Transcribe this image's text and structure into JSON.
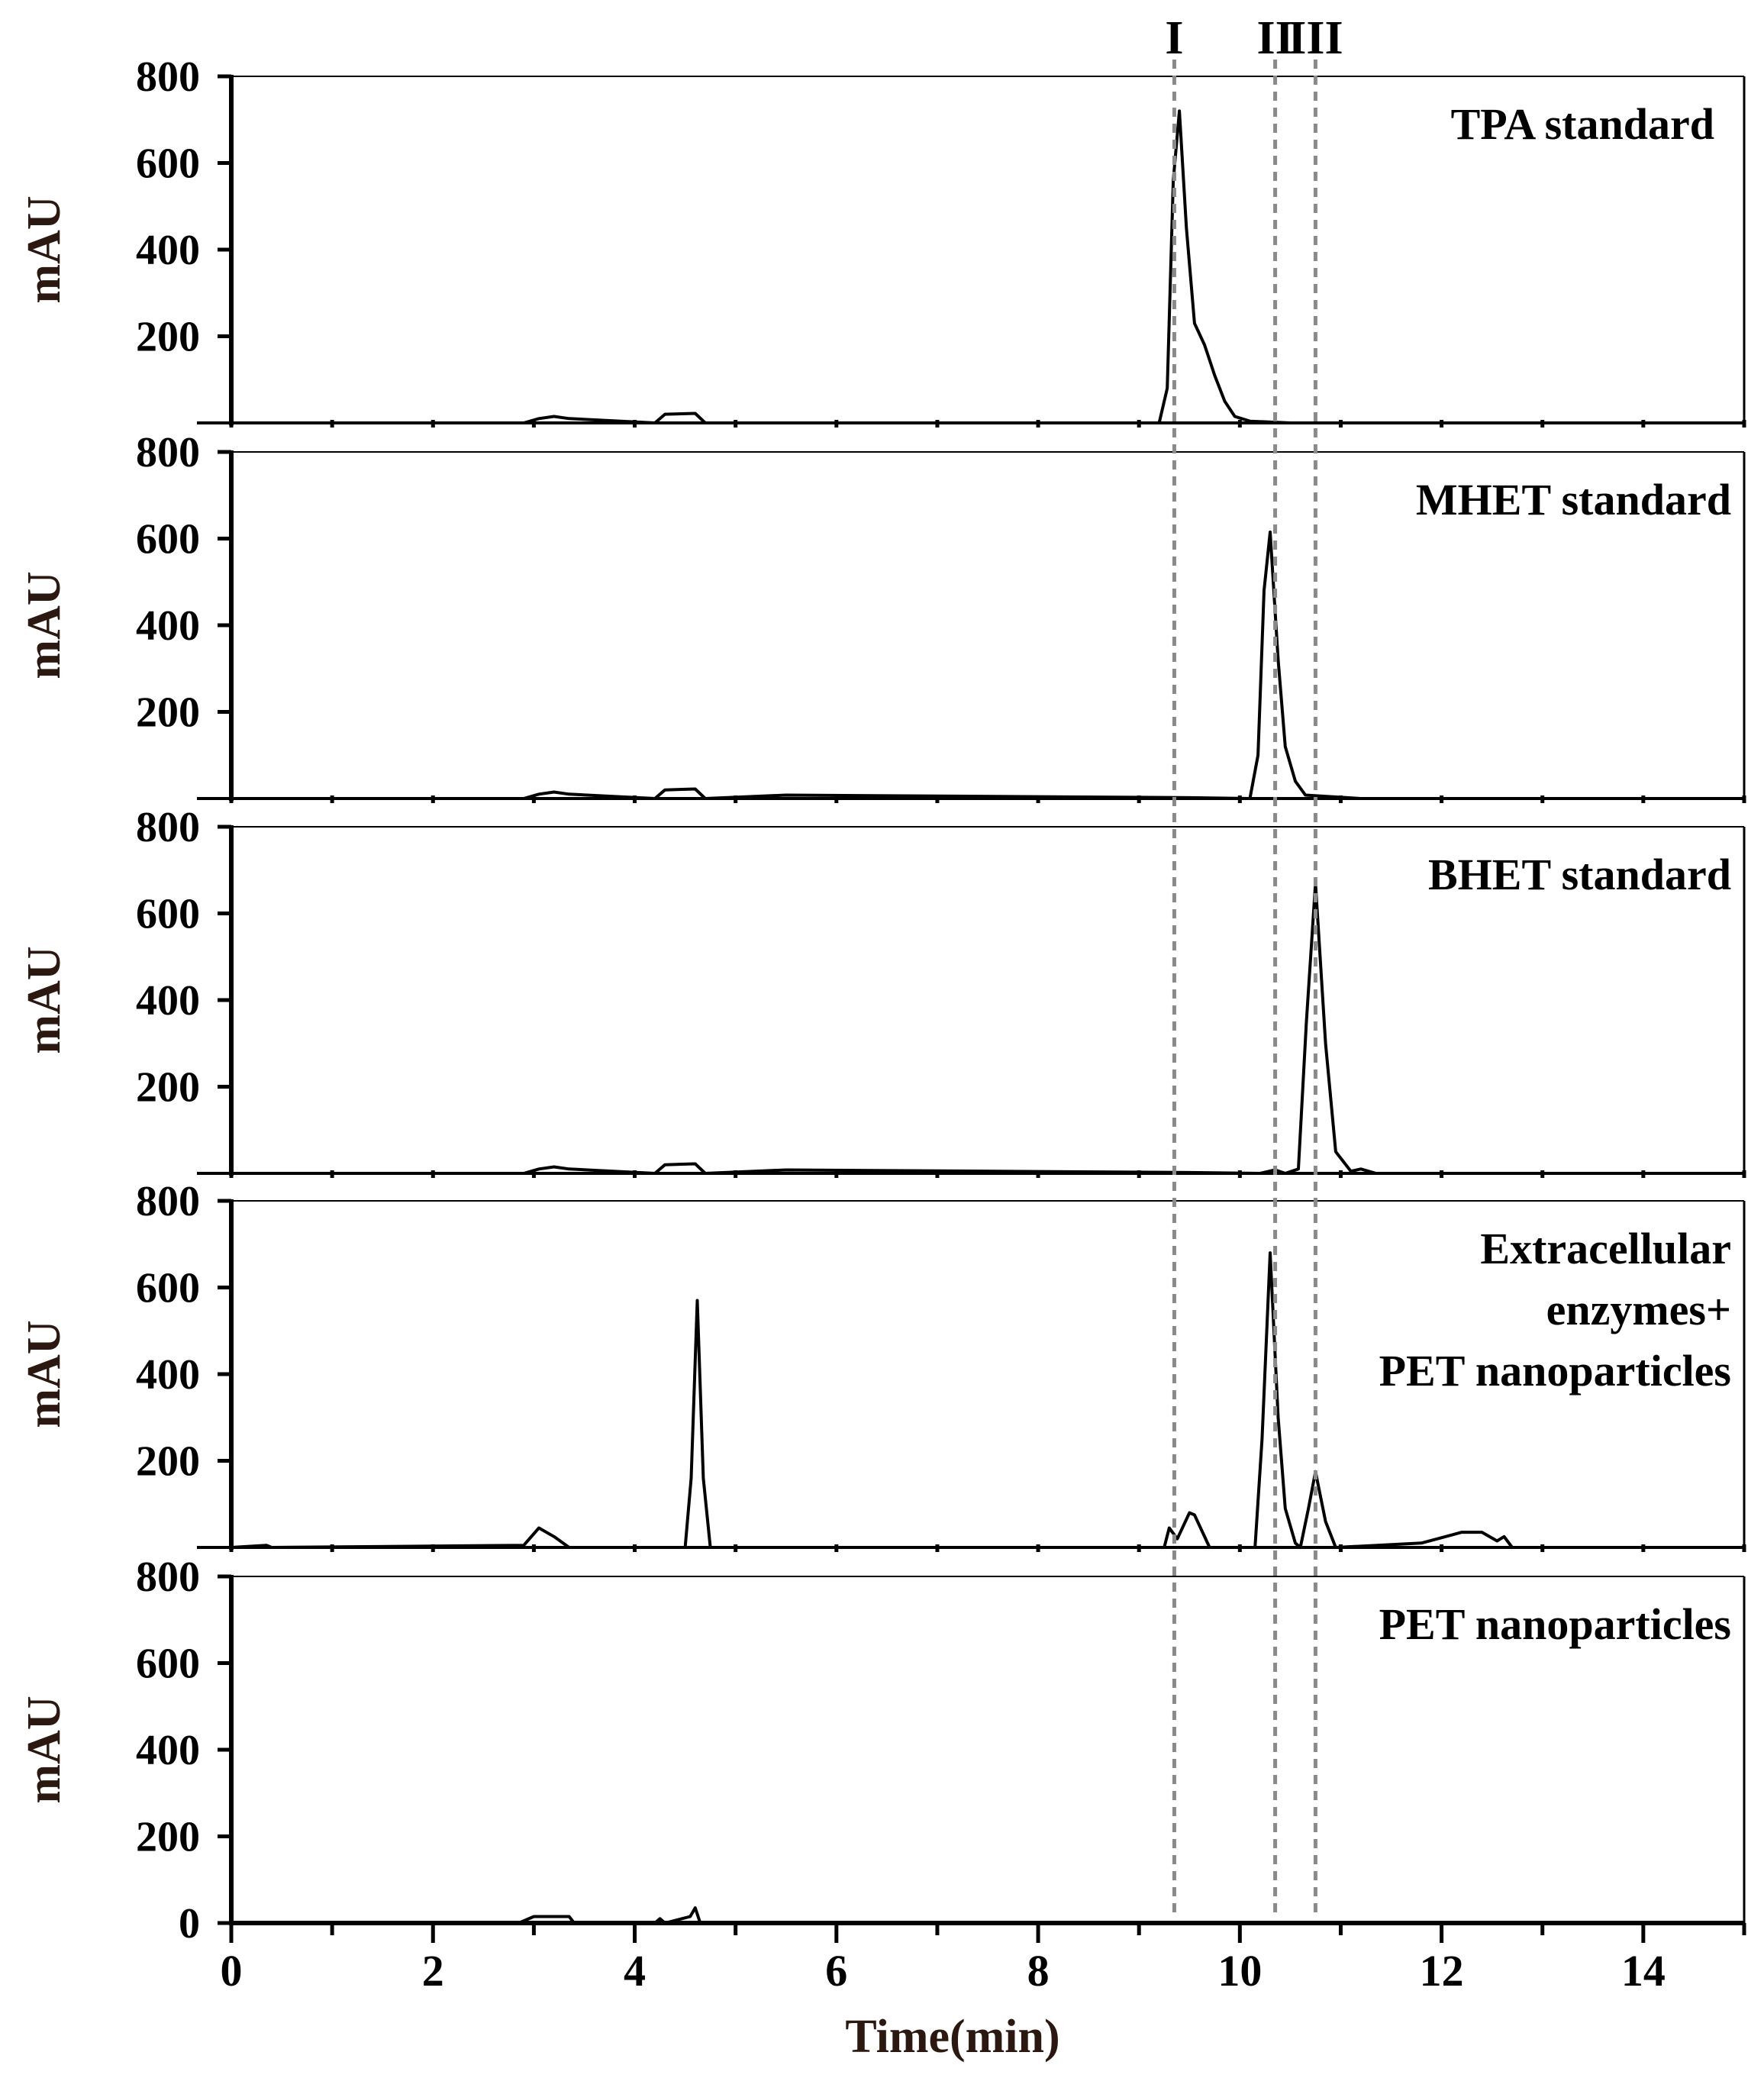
{
  "chart_data": {
    "type": "line",
    "xlabel": "Time(min)",
    "ylabel": "mAU",
    "xlim": [
      0,
      15
    ],
    "ylim": [
      0,
      800
    ],
    "x_ticks": [
      "0",
      "2",
      "4",
      "6",
      "8",
      "10",
      "12",
      "14"
    ],
    "y_ticks": [
      "200",
      "400",
      "600",
      "800"
    ],
    "bottom_y_ticks": [
      "0",
      "200",
      "400",
      "600",
      "800"
    ],
    "markers": [
      {
        "label": "I",
        "x": 9.35
      },
      {
        "label": "II",
        "x": 10.35
      },
      {
        "label": "III",
        "x": 10.75
      }
    ],
    "panels": [
      {
        "label": [
          "TPA standard"
        ],
        "x": [
          0,
          2.9,
          3.05,
          3.2,
          3.35,
          4.2,
          4.3,
          4.6,
          4.7,
          9.2,
          9.28,
          9.34,
          9.4,
          9.47,
          9.55,
          9.65,
          9.75,
          9.85,
          9.95,
          10.1,
          10.5,
          15
        ],
        "y": [
          0,
          0,
          10,
          15,
          10,
          0,
          20,
          22,
          0,
          0,
          80,
          560,
          720,
          450,
          230,
          180,
          110,
          50,
          15,
          4,
          0,
          0
        ]
      },
      {
        "label": [
          "MHET standard"
        ],
        "x": [
          0,
          2.9,
          3.05,
          3.2,
          3.35,
          4.2,
          4.3,
          4.6,
          4.7,
          5.5,
          9.5,
          10.1,
          10.18,
          10.24,
          10.3,
          10.38,
          10.45,
          10.55,
          10.65,
          11.2,
          15
        ],
        "y": [
          0,
          0,
          10,
          15,
          10,
          0,
          20,
          22,
          0,
          8,
          2,
          0,
          100,
          480,
          615,
          320,
          120,
          40,
          8,
          0,
          0
        ]
      },
      {
        "label": [
          "BHET standard"
        ],
        "x": [
          0,
          2.9,
          3.05,
          3.2,
          3.35,
          4.2,
          4.3,
          4.6,
          4.7,
          5.5,
          9.5,
          10.2,
          10.35,
          10.45,
          10.58,
          10.66,
          10.75,
          10.85,
          10.95,
          11.1,
          11.2,
          11.35,
          15
        ],
        "y": [
          0,
          0,
          10,
          15,
          10,
          0,
          20,
          22,
          0,
          8,
          2,
          0,
          8,
          0,
          10,
          350,
          670,
          300,
          50,
          5,
          10,
          0,
          0
        ]
      },
      {
        "label": [
          "Extracellular",
          "enzymes+",
          "PET nanoparticles"
        ],
        "x": [
          0,
          0.35,
          0.4,
          2.9,
          3.05,
          3.2,
          3.35,
          4.5,
          4.56,
          4.62,
          4.68,
          4.75,
          9.25,
          9.3,
          9.38,
          9.5,
          9.55,
          9.7,
          10.15,
          10.22,
          10.3,
          10.38,
          10.45,
          10.55,
          10.6,
          10.68,
          10.75,
          10.85,
          10.95,
          11.8,
          12.2,
          12.4,
          12.55,
          12.62,
          12.7,
          15
        ],
        "y": [
          0,
          5,
          0,
          5,
          45,
          25,
          0,
          0,
          160,
          570,
          160,
          0,
          0,
          45,
          20,
          80,
          75,
          0,
          0,
          250,
          680,
          300,
          90,
          10,
          0,
          90,
          175,
          60,
          0,
          10,
          35,
          35,
          15,
          25,
          0,
          0
        ]
      },
      {
        "label": [
          "PET nanoparticles"
        ],
        "x": [
          0,
          2.85,
          3.0,
          3.35,
          3.4,
          4.2,
          4.25,
          4.3,
          4.55,
          4.6,
          4.65,
          15
        ],
        "y": [
          0,
          0,
          15,
          15,
          0,
          0,
          10,
          0,
          15,
          35,
          0,
          0
        ]
      }
    ]
  }
}
